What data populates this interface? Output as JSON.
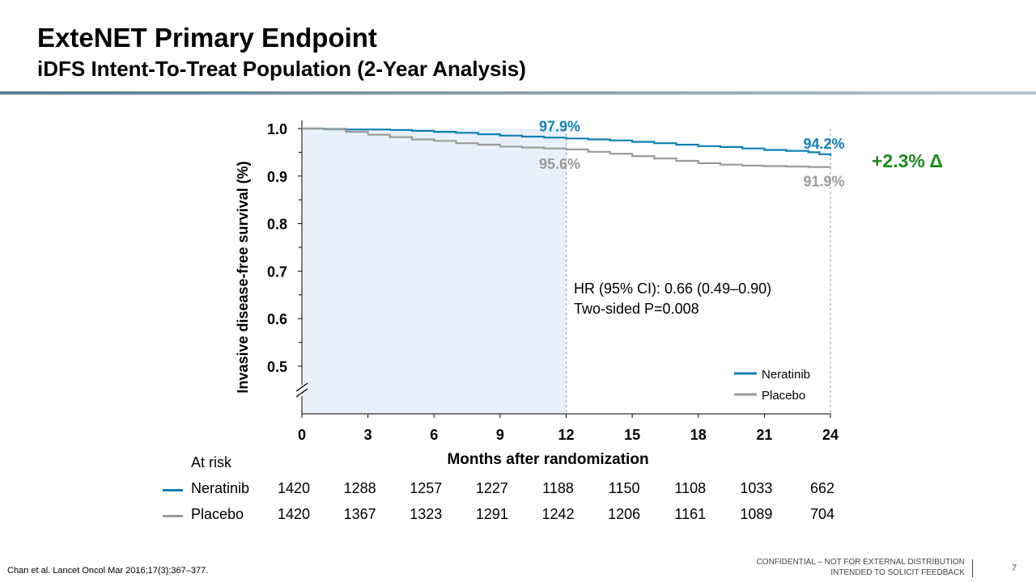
{
  "slide": {
    "title": "ExteNET Primary Endpoint",
    "subtitle": "iDFS Intent-To-Treat Population (2-Year Analysis)",
    "footnote": "Chan et al. Lancet Oncol Mar 2016;17(3):367–377.",
    "confidential_line1": "CONFIDENTIAL – NOT FOR EXTERNAL DISTRIBUTION",
    "confidential_line2": "INTENDED TO SOLICIT FEEDBACK",
    "page_number": "7",
    "rule_color": "#5b7d92"
  },
  "chart_data": {
    "type": "line",
    "xlabel": "Months after randomization",
    "ylabel": "Invasive disease-free survival (%)",
    "xlim": [
      0,
      24
    ],
    "ylim": [
      0.5,
      1.0
    ],
    "xticks": [
      "0",
      "3",
      "6",
      "9",
      "12",
      "15",
      "18",
      "21",
      "24"
    ],
    "xtick_values": [
      0,
      3,
      6,
      9,
      12,
      15,
      18,
      21,
      24
    ],
    "yticks": [
      "1.0",
      "0.9",
      "0.8",
      "0.7",
      "0.6",
      "0.5"
    ],
    "ytick_values": [
      1.0,
      0.9,
      0.8,
      0.7,
      0.6,
      0.5
    ],
    "axis_break": true,
    "shaded_region_x": [
      0,
      12
    ],
    "shade_color": "#e8f1fb",
    "reference_lines_x": [
      12,
      24
    ],
    "series": [
      {
        "name": "Neratinib",
        "color": "#0e7fb4",
        "x": [
          0,
          1,
          2,
          3,
          4,
          5,
          6,
          7,
          8,
          9,
          10,
          11,
          12,
          13,
          14,
          15,
          16,
          17,
          18,
          19,
          20,
          21,
          22,
          23,
          23.5,
          24
        ],
        "y": [
          1.0,
          0.999,
          0.998,
          0.998,
          0.997,
          0.995,
          0.993,
          0.991,
          0.988,
          0.985,
          0.983,
          0.981,
          0.979,
          0.977,
          0.975,
          0.972,
          0.969,
          0.966,
          0.963,
          0.961,
          0.958,
          0.955,
          0.953,
          0.95,
          0.946,
          0.942
        ]
      },
      {
        "name": "Placebo",
        "color": "#9a9a9a",
        "x": [
          0,
          1,
          2,
          3,
          4,
          5,
          6,
          7,
          8,
          9,
          10,
          11,
          12,
          13,
          14,
          15,
          16,
          17,
          18,
          19,
          20,
          21,
          22,
          23,
          24
        ],
        "y": [
          1.0,
          0.998,
          0.993,
          0.987,
          0.982,
          0.977,
          0.974,
          0.969,
          0.966,
          0.962,
          0.96,
          0.958,
          0.956,
          0.951,
          0.947,
          0.942,
          0.937,
          0.932,
          0.927,
          0.924,
          0.922,
          0.921,
          0.92,
          0.919,
          0.919
        ]
      }
    ],
    "annotations": [
      {
        "text": "97.9%",
        "x": 12,
        "y": 0.979,
        "color": "#0e7fb4",
        "pos": "above"
      },
      {
        "text": "95.6%",
        "x": 12,
        "y": 0.956,
        "color": "#9a9a9a",
        "pos": "below"
      },
      {
        "text": "94.2%",
        "x": 24,
        "y": 0.942,
        "color": "#0e7fb4",
        "pos": "above"
      },
      {
        "text": "91.9%",
        "x": 24,
        "y": 0.919,
        "color": "#9a9a9a",
        "pos": "below"
      }
    ],
    "delta_label": "+2.3% Δ",
    "delta_color": "#1a8a1a",
    "stats_line1": "HR (95% CI): 0.66 (0.49–0.90)",
    "stats_line2": "Two-sided P=0.008",
    "legend_position": "bottom-right"
  },
  "at_risk": {
    "header": "At risk",
    "rows": [
      {
        "name": "Neratinib",
        "color": "#0e7fb4",
        "values": [
          "1420",
          "1288",
          "1257",
          "1227",
          "1188",
          "1150",
          "1108",
          "1033",
          "662"
        ]
      },
      {
        "name": "Placebo",
        "color": "#9a9a9a",
        "values": [
          "1420",
          "1367",
          "1323",
          "1291",
          "1242",
          "1206",
          "1161",
          "1089",
          "704"
        ]
      }
    ]
  }
}
